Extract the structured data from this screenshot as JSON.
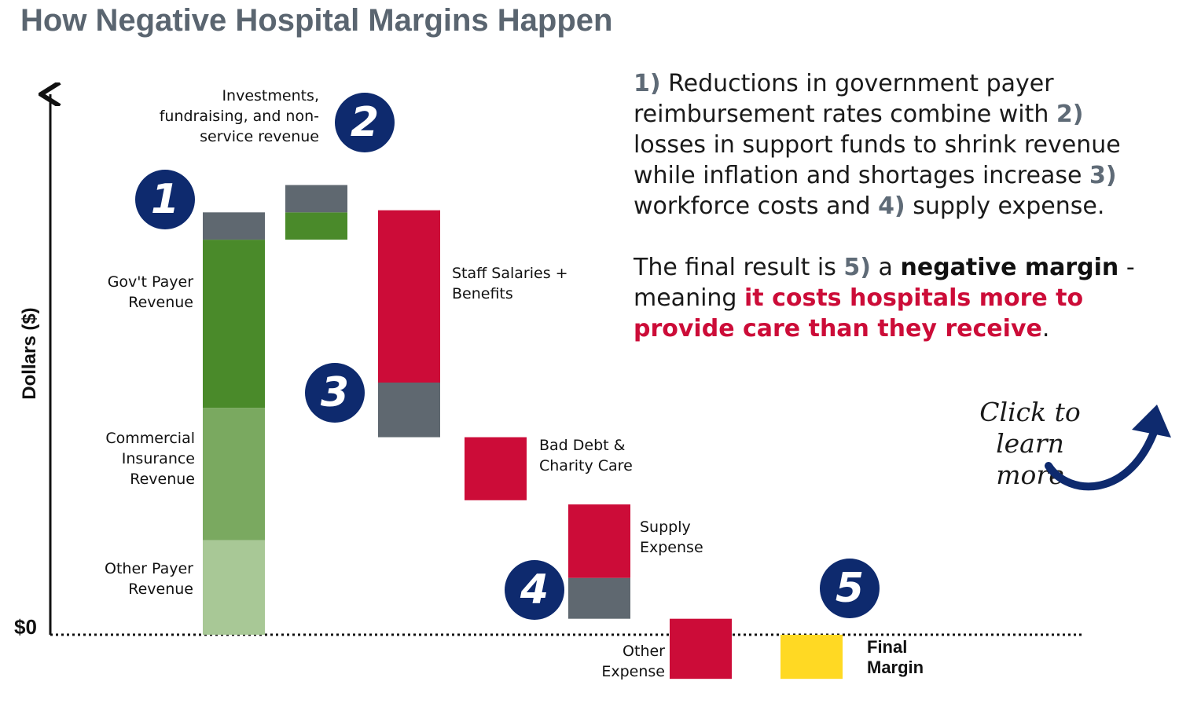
{
  "title": "How Negative Hospital Margins Happen",
  "chart_data": {
    "type": "waterfall",
    "ylabel": "Dollars ($)",
    "zero_label": "$0",
    "units": "relative dollars (axis unlabeled except $0)",
    "ylim": [
      -12,
      100
    ],
    "steps": [
      {
        "label": "Other Payer Revenue",
        "kind": "revenue",
        "segments": [
          {
            "part": "",
            "from": 0,
            "to": 22.5,
            "color": "#a8c896"
          }
        ]
      },
      {
        "label": "Commercial Insurance Revenue",
        "kind": "revenue",
        "segments": [
          {
            "part": "",
            "from": 22.5,
            "to": 54,
            "color": "#7aa960"
          }
        ]
      },
      {
        "label": "Gov't Payer Revenue",
        "kind": "revenue",
        "segments": [
          {
            "part": "",
            "from": 54,
            "to": 94,
            "color": "#4a8a2a"
          },
          {
            "part": "reduction",
            "from": 94,
            "to": 100.5,
            "color": "#5f6870"
          }
        ]
      },
      {
        "label": "Investments, fundraising, and non-service revenue",
        "kind": "revenue",
        "segments": [
          {
            "part": "",
            "from": 94,
            "to": 100.5,
            "color": "#4a8a2a"
          },
          {
            "part": "loss",
            "from": 100.5,
            "to": 107,
            "color": "#5f6870"
          }
        ]
      },
      {
        "label": "Staff Salaries + Benefits",
        "kind": "expense",
        "segments": [
          {
            "part": "",
            "from": 60,
            "to": 101,
            "color": "#cc0c38"
          },
          {
            "part": "increase",
            "from": 47,
            "to": 60,
            "color": "#5f6870"
          }
        ]
      },
      {
        "label": "Bad Debt & Charity Care",
        "kind": "expense",
        "segments": [
          {
            "part": "",
            "from": 32,
            "to": 47,
            "color": "#cc0c38"
          }
        ]
      },
      {
        "label": "Supply Expense",
        "kind": "expense",
        "segments": [
          {
            "part": "",
            "from": 13.5,
            "to": 31,
            "color": "#cc0c38"
          },
          {
            "part": "increase",
            "from": 3.8,
            "to": 13.5,
            "color": "#5f6870"
          }
        ]
      },
      {
        "label": "Other Expense",
        "kind": "expense",
        "segments": [
          {
            "part": "",
            "from": -10.5,
            "to": 3.8,
            "color": "#cc0c38"
          }
        ]
      },
      {
        "label": "Final Margin",
        "kind": "result",
        "segments": [
          {
            "part": "",
            "from": -10.5,
            "to": 0,
            "color": "#ffd923"
          }
        ]
      }
    ],
    "badges": [
      "1",
      "2",
      "3",
      "4",
      "5"
    ]
  },
  "explainer": {
    "p1": [
      {
        "t": "1)",
        "s": "num"
      },
      {
        "t": " Reductions in government payer reimbursement rates combine with ",
        "s": ""
      },
      {
        "t": "2)",
        "s": "num"
      },
      {
        "t": " losses in support funds to shrink revenue while inflation and shortages increase  ",
        "s": ""
      },
      {
        "t": "3)",
        "s": "num"
      },
      {
        "t": " workforce costs and ",
        "s": ""
      },
      {
        "t": "4)",
        "s": "num"
      },
      {
        "t": " supply expense.",
        "s": ""
      }
    ],
    "p2": [
      {
        "t": "The final result is ",
        "s": ""
      },
      {
        "t": "5)",
        "s": "num"
      },
      {
        "t": " a ",
        "s": ""
      },
      {
        "t": "negative margin",
        "s": "strong"
      },
      {
        "t": " - meaning ",
        "s": ""
      },
      {
        "t": "it costs hospitals more to provide care than they receive",
        "s": "hl"
      },
      {
        "t": ".",
        "s": ""
      }
    ]
  },
  "cta": {
    "text": "Click to\nlearn more",
    "arrow_icon": "curved-arrow-icon",
    "color": "#0e2a6e"
  },
  "labels": {
    "other_payer": "Other Payer\nRevenue",
    "commercial": "Commercial\nInsurance\nRevenue",
    "govt": "Gov't Payer\nRevenue",
    "investments": "Investments,\nfundraising, and non-\nservice revenue",
    "staff": "Staff Salaries +\nBenefits",
    "bad_debt": "Bad Debt &\nCharity Care",
    "supply": "Supply\nExpense",
    "other_expense": "Other\nExpense",
    "final_margin": "Final\nMargin"
  }
}
